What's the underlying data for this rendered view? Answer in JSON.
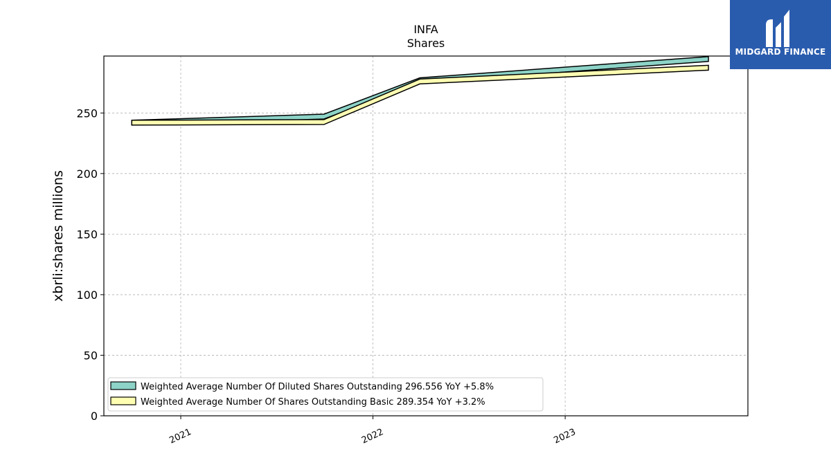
{
  "chart_data": {
    "type": "area",
    "title": "INFA",
    "subtitle": "Shares",
    "xlabel": "",
    "ylabel": "xbrli:shares millions",
    "x_ticks": [
      "2021",
      "2022",
      "2023"
    ],
    "y_ticks": [
      0,
      50,
      100,
      150,
      200,
      250
    ],
    "ylim": [
      0,
      297
    ],
    "xlim": [
      "2020-08-08",
      "2023-12-14"
    ],
    "grid": true,
    "legend_position": "lower-left",
    "series": [
      {
        "name": "Weighted Average Number Of Diluted Shares Outstanding",
        "legend_label": "Weighted Average Number Of Diluted Shares Outstanding  296.556 YoY +5.8%",
        "color": "#8dd3c7",
        "x": [
          "2020-09-30",
          "2021-09-30",
          "2022-03-31",
          "2023-09-30"
        ],
        "values": [
          244,
          249,
          279,
          296.556
        ]
      },
      {
        "name": "Weighted Average Number Of Shares Outstanding Basic",
        "legend_label": "Weighted Average Number Of Shares Outstanding Basic  289.354 YoY +3.2%",
        "color": "#ffffb3",
        "x": [
          "2020-09-30",
          "2021-09-30",
          "2022-03-31",
          "2023-09-30"
        ],
        "values": [
          244,
          244.5,
          278,
          289.354
        ]
      }
    ]
  },
  "brand": {
    "name": "MIDGARD FINANCE",
    "color": "#2a5cae"
  }
}
